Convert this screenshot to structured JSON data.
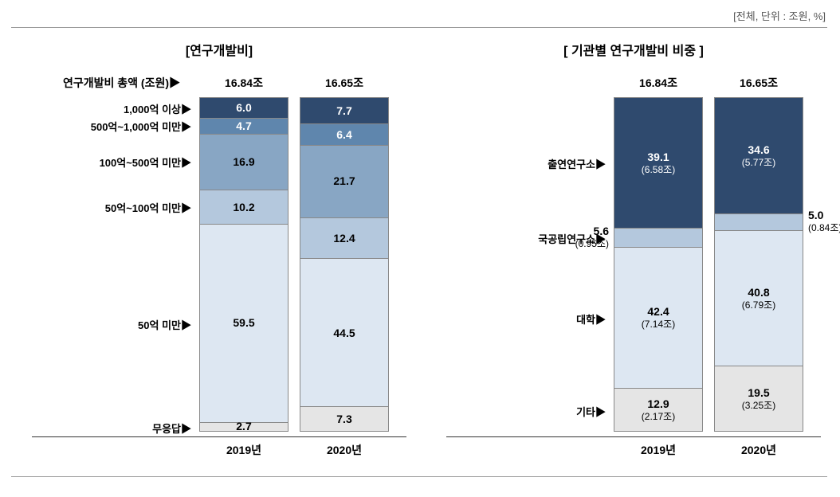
{
  "unit_label": "[전체, 단위 : 조원, %]",
  "colors": {
    "c0": "#2f4a6e",
    "c1": "#5f86ad",
    "c2": "#88a6c4",
    "c3": "#b4c8dd",
    "c4": "#dde7f2",
    "c5": "#e5e5e5",
    "text_dark": "#000000",
    "text_light": "#ffffff"
  },
  "left_chart": {
    "title": "[연구개발비]",
    "totals_label": "연구개발비 총액 (조원)▶",
    "totals": [
      "16.84조",
      "16.65조"
    ],
    "x_labels": [
      "2019년",
      "2020년"
    ],
    "categories": [
      "1,000억 이상▶",
      "500억~1,000억 미만▶",
      "100억~500억 미만▶",
      "50억~100억 미만▶",
      "50억 미만▶",
      "무응답▶"
    ],
    "bars": [
      {
        "segments": [
          {
            "value": "6.0",
            "pct": 6.0,
            "color_key": "c0",
            "text_key": "text_light"
          },
          {
            "value": "4.7",
            "pct": 4.7,
            "color_key": "c1",
            "text_key": "text_light"
          },
          {
            "value": "16.9",
            "pct": 16.9,
            "color_key": "c2",
            "text_key": "text_dark"
          },
          {
            "value": "10.2",
            "pct": 10.2,
            "color_key": "c3",
            "text_key": "text_dark"
          },
          {
            "value": "59.5",
            "pct": 59.5,
            "color_key": "c4",
            "text_key": "text_dark"
          },
          {
            "value": "2.7",
            "pct": 2.7,
            "color_key": "c5",
            "text_key": "text_dark",
            "external": true
          }
        ]
      },
      {
        "segments": [
          {
            "value": "7.7",
            "pct": 7.7,
            "color_key": "c0",
            "text_key": "text_light"
          },
          {
            "value": "6.4",
            "pct": 6.4,
            "color_key": "c1",
            "text_key": "text_light"
          },
          {
            "value": "21.7",
            "pct": 21.7,
            "color_key": "c2",
            "text_key": "text_dark"
          },
          {
            "value": "12.4",
            "pct": 12.4,
            "color_key": "c3",
            "text_key": "text_dark"
          },
          {
            "value": "44.5",
            "pct": 44.5,
            "color_key": "c4",
            "text_key": "text_dark"
          },
          {
            "value": "7.3",
            "pct": 7.3,
            "color_key": "c5",
            "text_key": "text_dark"
          }
        ]
      }
    ]
  },
  "right_chart": {
    "title": "[ 기관별 연구개발비 비중 ]",
    "totals_label": "",
    "totals": [
      "16.84조",
      "16.65조"
    ],
    "x_labels": [
      "2019년",
      "2020년"
    ],
    "categories": [
      "출연연구소▶",
      "국공립연구소▶",
      "대학▶",
      "기타▶"
    ],
    "bars": [
      {
        "segments": [
          {
            "value": "39.1",
            "sub": "(6.58조)",
            "pct": 39.1,
            "color_key": "c0",
            "text_key": "text_light"
          },
          {
            "value": "5.6",
            "sub": "(0.95조)",
            "pct": 5.6,
            "color_key": "c3",
            "text_key": "text_dark",
            "external": true
          },
          {
            "value": "42.4",
            "sub": "(7.14조)",
            "pct": 42.4,
            "color_key": "c4",
            "text_key": "text_dark"
          },
          {
            "value": "12.9",
            "sub": "(2.17조)",
            "pct": 12.9,
            "color_key": "c5",
            "text_key": "text_dark"
          }
        ]
      },
      {
        "segments": [
          {
            "value": "34.6",
            "sub": "(5.77조)",
            "pct": 34.6,
            "color_key": "c0",
            "text_key": "text_light"
          },
          {
            "value": "5.0",
            "sub": "(0.84조)",
            "pct": 5.0,
            "color_key": "c3",
            "text_key": "text_dark",
            "external": true,
            "external_side": "right"
          },
          {
            "value": "40.8",
            "sub": "(6.79조)",
            "pct": 40.8,
            "color_key": "c4",
            "text_key": "text_dark"
          },
          {
            "value": "19.5",
            "sub": "(3.25조)",
            "pct": 19.5,
            "color_key": "c5",
            "text_key": "text_dark"
          }
        ]
      }
    ]
  }
}
